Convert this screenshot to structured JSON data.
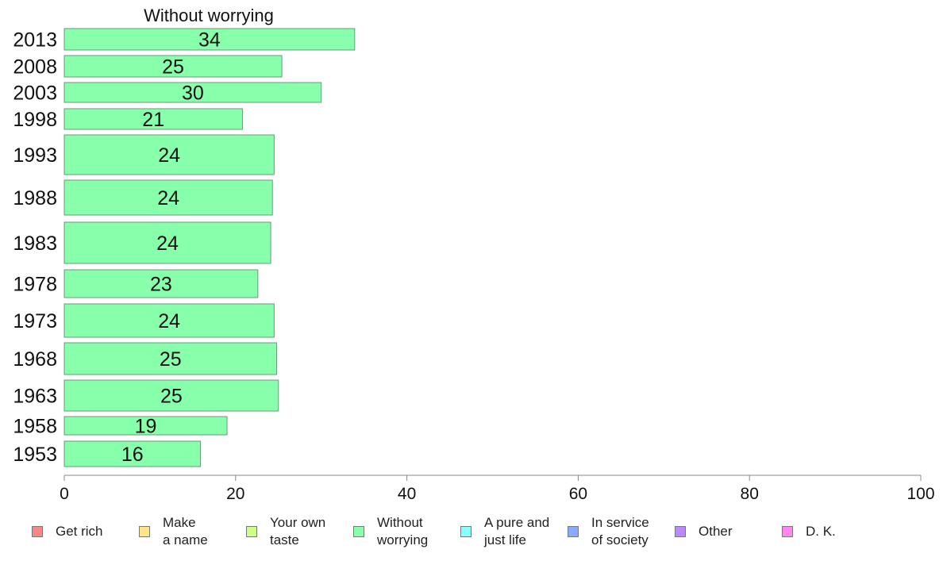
{
  "chart_data": {
    "type": "bar",
    "orientation": "horizontal",
    "title": "Without worrying",
    "categories": [
      "2013",
      "2008",
      "2003",
      "1998",
      "1993",
      "1988",
      "1983",
      "1978",
      "1973",
      "1968",
      "1963",
      "1958",
      "1953"
    ],
    "values": [
      34,
      25,
      30,
      21,
      24,
      24,
      24,
      23,
      24,
      25,
      25,
      19,
      16
    ],
    "bar_lengths": [
      33.9,
      25.4,
      30.0,
      20.8,
      24.5,
      24.3,
      24.1,
      22.6,
      24.5,
      24.8,
      25.0,
      19.0,
      15.9
    ],
    "xlim": [
      0,
      100
    ],
    "xticks": [
      0,
      20,
      40,
      60,
      80,
      100
    ],
    "grid": false,
    "legend_position": "bottom",
    "colors": {
      "bar_fill": "#88ffaa",
      "bar_stroke": "#6a9a7a",
      "axis": "#888888"
    }
  },
  "legend": [
    {
      "label": "Get rich",
      "color": "#f88888"
    },
    {
      "label": "Make\na name",
      "color": "#ffe488"
    },
    {
      "label": "Your own\ntaste",
      "color": "#ccff88"
    },
    {
      "label": "Without\nworrying",
      "color": "#88ffaa"
    },
    {
      "label": "A pure and\njust life",
      "color": "#88ffff"
    },
    {
      "label": "In service\nof society",
      "color": "#88aaff"
    },
    {
      "label": "Other",
      "color": "#bb88ff"
    },
    {
      "label": "D. K.",
      "color": "#ff88ee"
    }
  ]
}
